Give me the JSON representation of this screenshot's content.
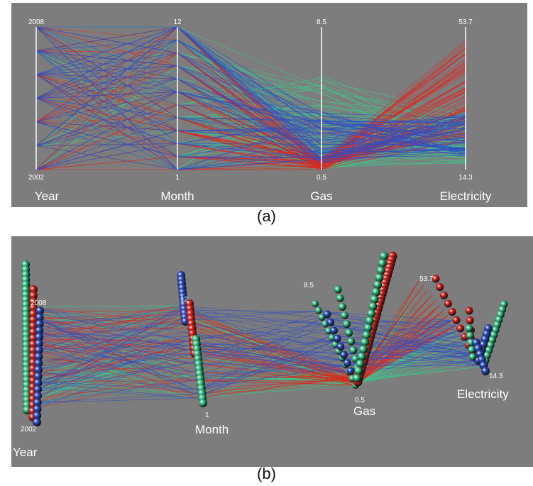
{
  "figure": {
    "caption_a": "(a)",
    "caption_b": "(b)"
  },
  "colors": {
    "background": "#7d7d7d",
    "blue": "#2f4fc4",
    "red": "#e0241c",
    "green": "#39c98a",
    "axis": "#ffffff"
  },
  "chart_data": [
    {
      "type": "parallel-coordinates",
      "panel": "a",
      "axes": [
        {
          "name": "Year",
          "max_label": "2008",
          "min_label": "2002"
        },
        {
          "name": "Month",
          "max_label": "12",
          "min_label": "1"
        },
        {
          "name": "Gas",
          "max_label": "8.5",
          "min_label": "0.5"
        },
        {
          "name": "Electricity",
          "max_label": "53.7",
          "min_label": "14.3"
        }
      ],
      "ranges": {
        "Year": [
          2002,
          2008
        ],
        "Month": [
          1,
          12
        ],
        "Gas": [
          0.5,
          8.5
        ],
        "Electricity": [
          14.3,
          53.7
        ]
      },
      "clusters": [
        {
          "color": "blue",
          "gas_range": [
            0.8,
            3.8
          ],
          "elec_range": [
            18,
            30
          ]
        },
        {
          "color": "red",
          "gas_range": [
            0.5,
            1.2
          ],
          "elec_range": [
            22,
            50
          ]
        },
        {
          "color": "green",
          "gas_range": [
            0.5,
            6.0
          ],
          "elec_range": [
            16,
            30
          ]
        }
      ]
    },
    {
      "type": "parallel-coordinates-3d",
      "panel": "b",
      "axes": [
        {
          "name": "Year",
          "max_label": "2008",
          "min_label": "2002"
        },
        {
          "name": "Month",
          "max_label": "12",
          "min_label": "1"
        },
        {
          "name": "Gas",
          "max_label": "8.5",
          "min_label": "0.5"
        },
        {
          "name": "Electricity",
          "max_label": "53.7",
          "min_label": "14.3"
        }
      ]
    }
  ]
}
